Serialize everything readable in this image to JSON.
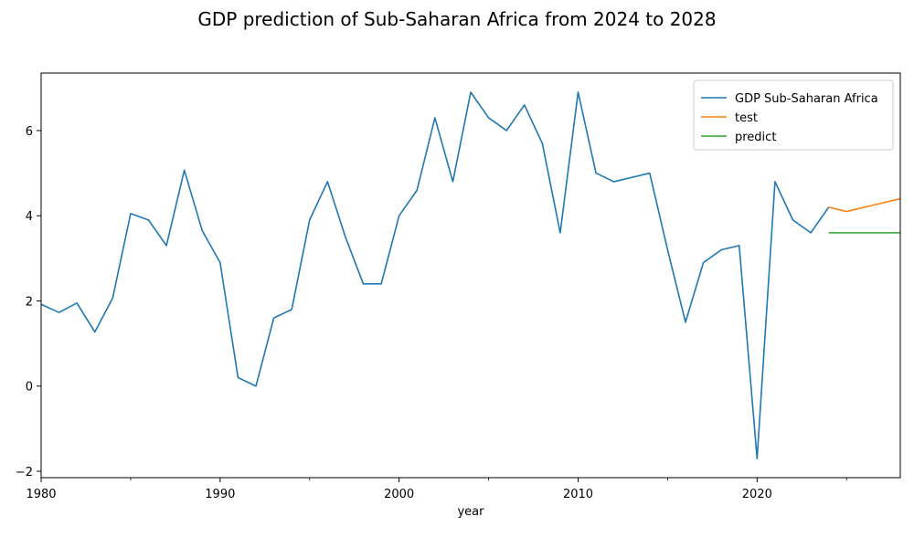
{
  "chart_data": {
    "type": "line",
    "title": "GDP prediction of Sub-Saharan Africa from 2024 to 2028",
    "xlabel": "year",
    "ylabel": "",
    "xlim": [
      1980,
      2028
    ],
    "ylim": [
      -2.15,
      7.35
    ],
    "x_ticks": [
      1980,
      1990,
      2000,
      2010,
      2020
    ],
    "y_ticks": [
      -2,
      0,
      2,
      4,
      6
    ],
    "grid": false,
    "legend_position": "top-right",
    "series": [
      {
        "name": "GDP Sub-Saharan Africa",
        "color": "#1f77b4",
        "x": [
          1980,
          1981,
          1982,
          1983,
          1984,
          1985,
          1986,
          1987,
          1988,
          1989,
          1990,
          1991,
          1992,
          1993,
          1994,
          1995,
          1996,
          1997,
          1998,
          1999,
          2000,
          2001,
          2002,
          2003,
          2004,
          2005,
          2006,
          2007,
          2008,
          2009,
          2010,
          2011,
          2012,
          2013,
          2014,
          2015,
          2016,
          2017,
          2018,
          2019,
          2020,
          2021,
          2022,
          2023,
          2024
        ],
        "values": [
          1.92,
          1.73,
          1.95,
          1.27,
          2.07,
          4.05,
          3.9,
          3.3,
          5.07,
          3.65,
          2.9,
          0.2,
          0.0,
          1.6,
          1.8,
          3.9,
          4.8,
          3.5,
          2.4,
          2.4,
          4.0,
          4.6,
          6.3,
          4.8,
          6.9,
          6.3,
          6.0,
          6.6,
          5.7,
          3.6,
          6.9,
          5.0,
          4.8,
          4.9,
          5.0,
          3.2,
          1.5,
          2.9,
          3.2,
          3.3,
          -1.7,
          4.8,
          3.9,
          3.6,
          4.2
        ]
      },
      {
        "name": "test",
        "color": "#ff7f0e",
        "x": [
          2024,
          2025,
          2026,
          2027,
          2028
        ],
        "values": [
          4.2,
          4.1,
          4.2,
          4.3,
          4.4
        ]
      },
      {
        "name": "predict",
        "color": "#2ca02c",
        "x": [
          2024,
          2025,
          2026,
          2027,
          2028
        ],
        "values": [
          3.6,
          3.6,
          3.6,
          3.6,
          3.6
        ]
      }
    ]
  }
}
